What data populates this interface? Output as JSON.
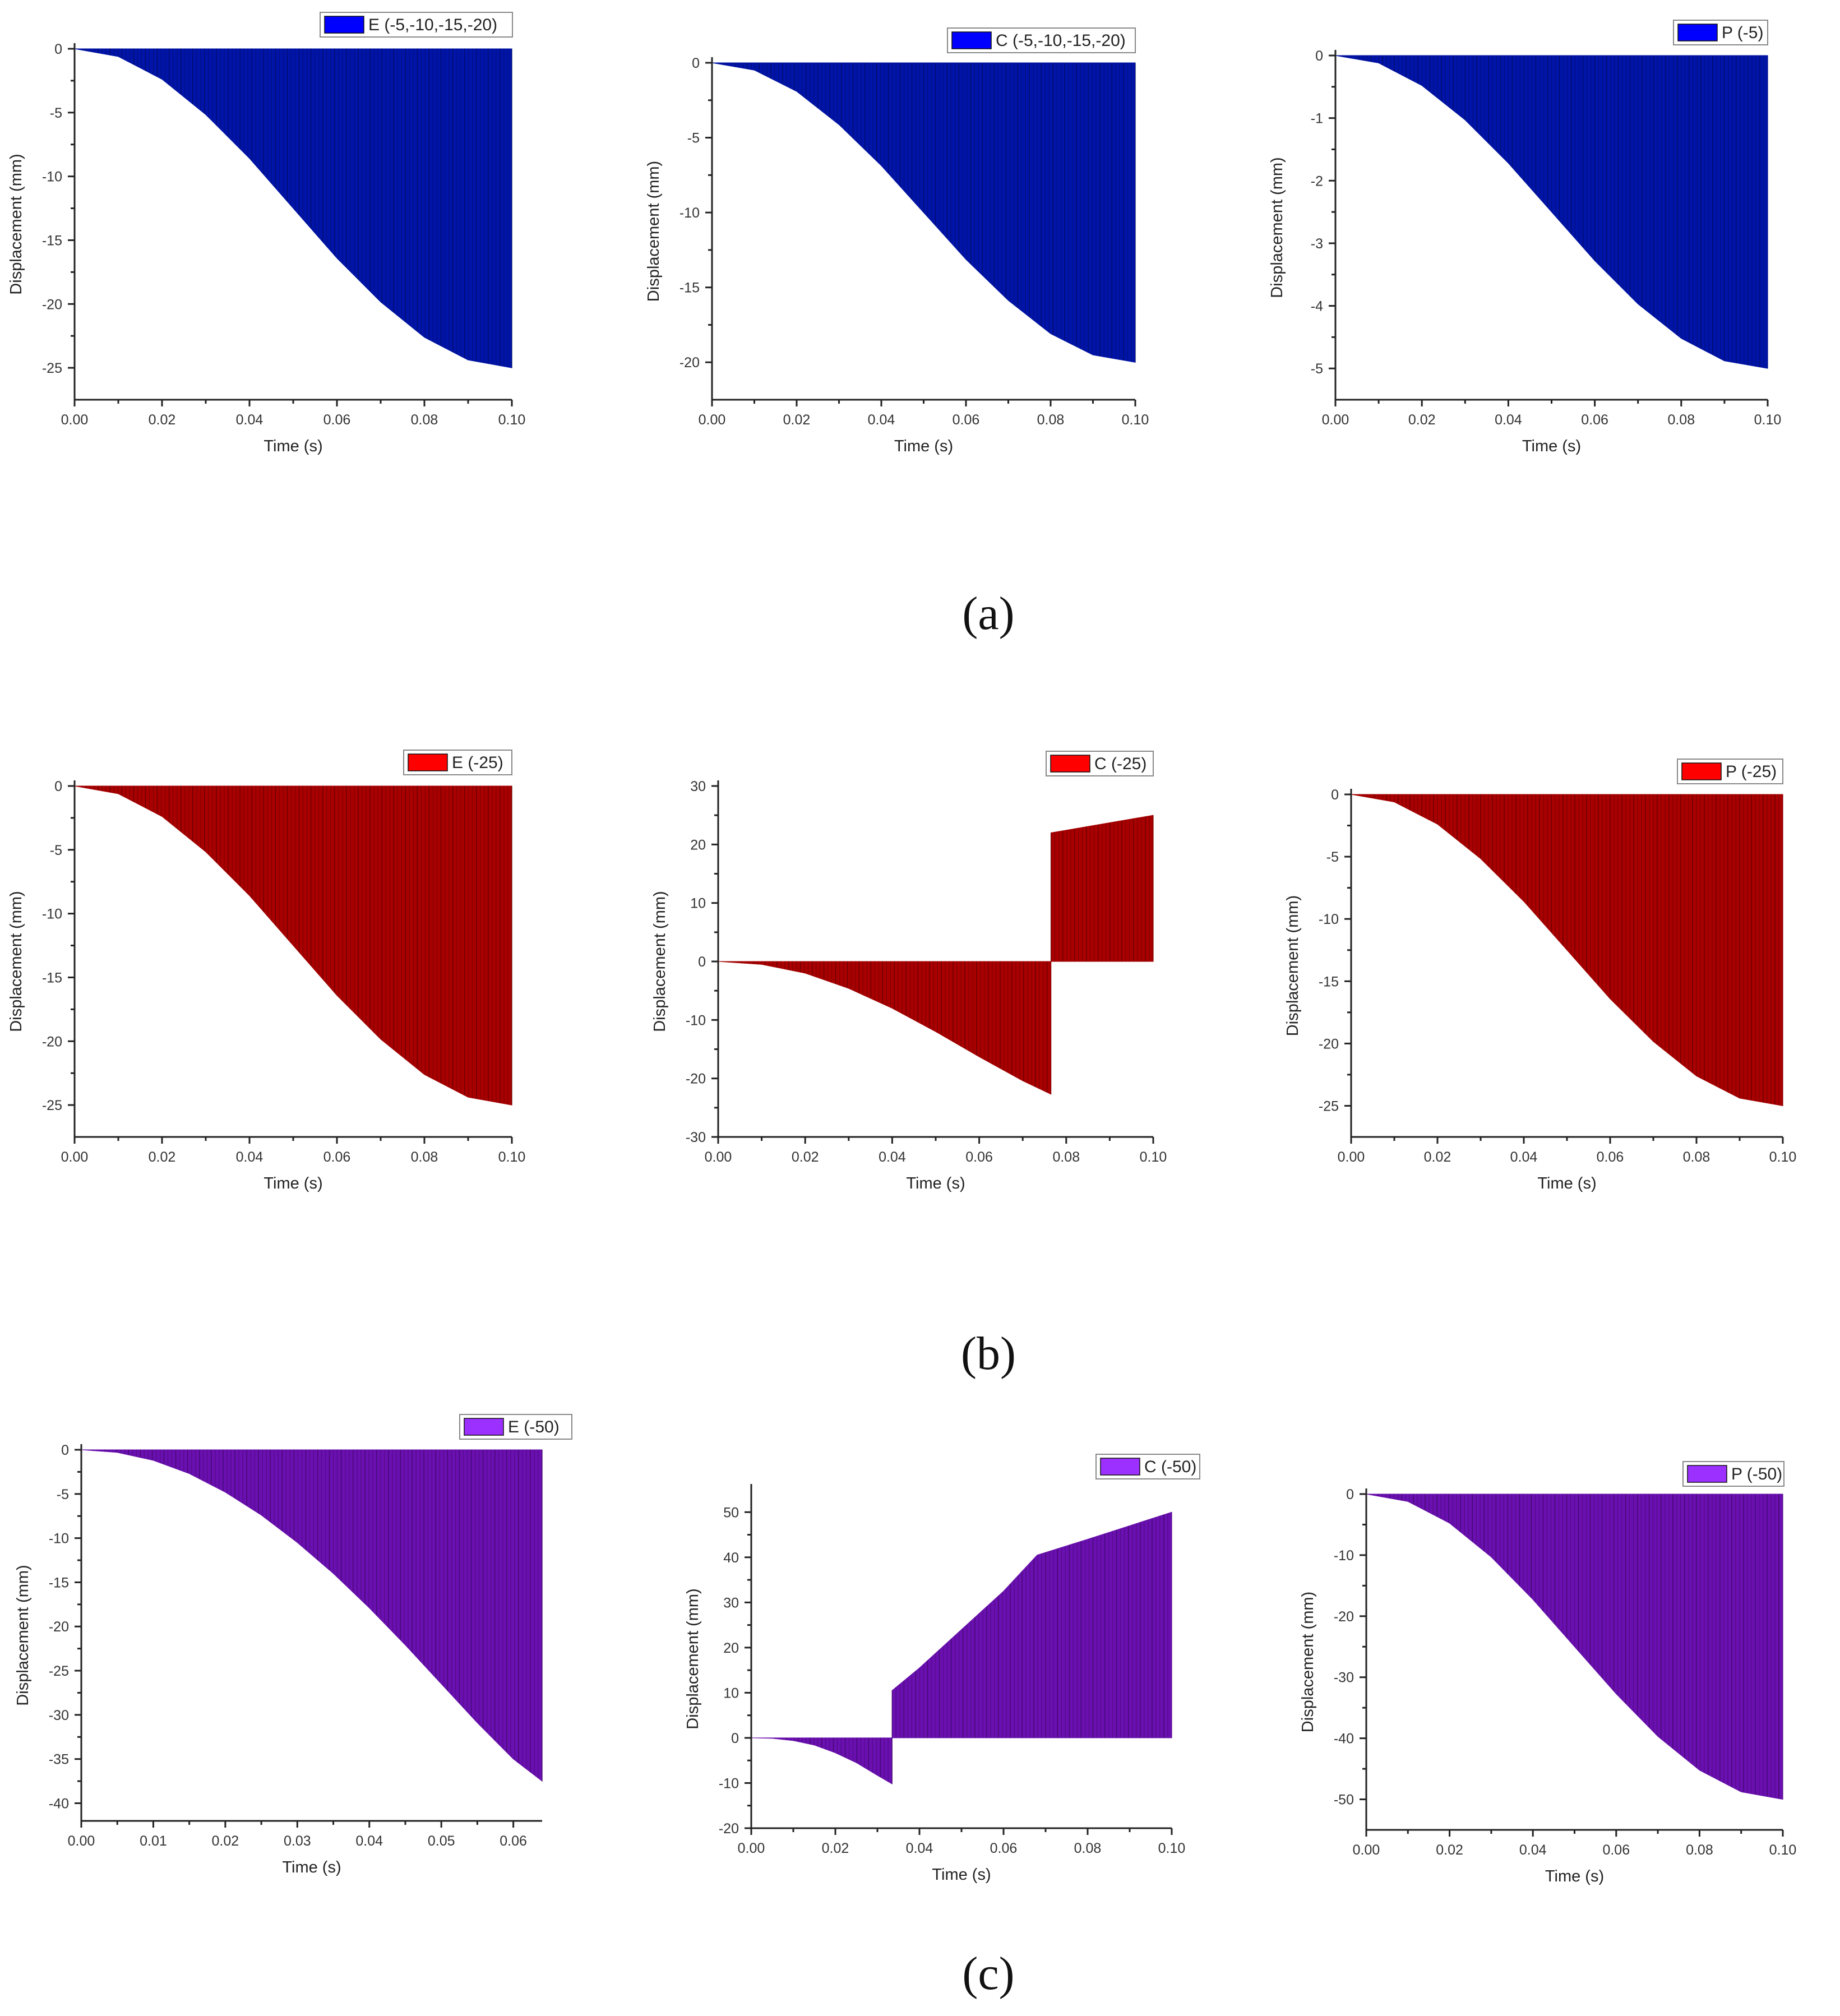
{
  "captions": [
    "(a)",
    "(b)",
    "(c)"
  ],
  "colors": {
    "blue": "#0014a8",
    "blue_legend": "#0000ff",
    "red": "#a80000",
    "red_legend": "#ff0000",
    "purple": "#6a0fb0",
    "purple_legend": "#9b30ff"
  },
  "chart_data": [
    {
      "id": "a1",
      "type": "area",
      "color": "blue",
      "legend": "E (-5,-10,-15,-20)",
      "xlabel": "Time (s)",
      "ylabel": "Displacement (mm)",
      "xlim": [
        0,
        0.1
      ],
      "ylim": [
        -27.5,
        0
      ],
      "xticks": [
        0,
        0.02,
        0.04,
        0.06,
        0.08,
        0.1
      ],
      "xtick_labels": [
        "0.00",
        "0.02",
        "0.04",
        "0.06",
        "0.08",
        "0.10"
      ],
      "yticks": [
        0,
        -5,
        -10,
        -15,
        -20,
        -25
      ],
      "ytick_labels": [
        "0",
        "-5",
        "-10",
        "-15",
        "-20",
        "-25"
      ],
      "segments": [
        {
          "x": [
            0,
            0.01,
            0.02,
            0.03,
            0.04,
            0.05,
            0.06,
            0.07,
            0.08,
            0.09,
            0.1
          ],
          "y": [
            0,
            -0.61,
            -2.39,
            -5.16,
            -8.59,
            -12.5,
            -16.41,
            -19.84,
            -22.61,
            -24.39,
            -25
          ]
        }
      ]
    },
    {
      "id": "a2",
      "type": "area",
      "color": "blue",
      "legend": "C (-5,-10,-15,-20)",
      "xlabel": "Time (s)",
      "ylabel": "Displacement (mm)",
      "xlim": [
        0,
        0.1
      ],
      "ylim": [
        -22.5,
        0
      ],
      "xticks": [
        0,
        0.02,
        0.04,
        0.06,
        0.08,
        0.1
      ],
      "xtick_labels": [
        "0.00",
        "0.02",
        "0.04",
        "0.06",
        "0.08",
        "0.10"
      ],
      "yticks": [
        0,
        -5,
        -10,
        -15,
        -20
      ],
      "ytick_labels": [
        "0",
        "-5",
        "-10",
        "-15",
        "-20"
      ],
      "segments": [
        {
          "x": [
            0,
            0.01,
            0.02,
            0.03,
            0.04,
            0.05,
            0.06,
            0.07,
            0.08,
            0.09,
            0.1
          ],
          "y": [
            0,
            -0.49,
            -1.91,
            -4.13,
            -6.87,
            -10,
            -13.13,
            -15.87,
            -18.09,
            -19.51,
            -20
          ]
        }
      ]
    },
    {
      "id": "a3",
      "type": "area",
      "color": "blue",
      "legend": "P (-5)",
      "xlabel": "Time (s)",
      "ylabel": "Displacement (mm)",
      "xlim": [
        0,
        0.1
      ],
      "ylim": [
        -5.5,
        0
      ],
      "xticks": [
        0,
        0.02,
        0.04,
        0.06,
        0.08,
        0.1
      ],
      "xtick_labels": [
        "0.00",
        "0.02",
        "0.04",
        "0.06",
        "0.08",
        "0.10"
      ],
      "yticks": [
        0,
        -1,
        -2,
        -3,
        -4,
        -5
      ],
      "ytick_labels": [
        "0",
        "-1",
        "-2",
        "-3",
        "-4",
        "-5"
      ],
      "segments": [
        {
          "x": [
            0,
            0.01,
            0.02,
            0.03,
            0.04,
            0.05,
            0.06,
            0.07,
            0.08,
            0.09,
            0.1
          ],
          "y": [
            0,
            -0.12,
            -0.48,
            -1.03,
            -1.72,
            -2.5,
            -3.28,
            -3.97,
            -4.52,
            -4.88,
            -5
          ]
        }
      ]
    },
    {
      "id": "b1",
      "type": "area",
      "color": "red",
      "legend": "E (-25)",
      "xlabel": "Time (s)",
      "ylabel": "Displacement (mm)",
      "xlim": [
        0,
        0.1
      ],
      "ylim": [
        -27.5,
        0
      ],
      "xticks": [
        0,
        0.02,
        0.04,
        0.06,
        0.08,
        0.1
      ],
      "xtick_labels": [
        "0.00",
        "0.02",
        "0.04",
        "0.06",
        "0.08",
        "0.10"
      ],
      "yticks": [
        0,
        -5,
        -10,
        -15,
        -20,
        -25
      ],
      "ytick_labels": [
        "0",
        "-5",
        "-10",
        "-15",
        "-20",
        "-25"
      ],
      "segments": [
        {
          "x": [
            0,
            0.01,
            0.02,
            0.03,
            0.04,
            0.05,
            0.06,
            0.07,
            0.08,
            0.09,
            0.1
          ],
          "y": [
            0,
            -0.61,
            -2.39,
            -5.16,
            -8.59,
            -12.5,
            -16.41,
            -19.84,
            -22.61,
            -24.39,
            -25
          ]
        }
      ]
    },
    {
      "id": "b2",
      "type": "area",
      "color": "red",
      "legend": "C (-25)",
      "xlabel": "Time (s)",
      "ylabel": "Displacement (mm)",
      "xlim": [
        0,
        0.1
      ],
      "ylim": [
        -30,
        30
      ],
      "xticks": [
        0,
        0.02,
        0.04,
        0.06,
        0.08,
        0.1
      ],
      "xtick_labels": [
        "0.00",
        "0.02",
        "0.04",
        "0.06",
        "0.08",
        "0.10"
      ],
      "yticks": [
        30,
        20,
        10,
        0,
        -10,
        -20,
        -30
      ],
      "ytick_labels": [
        "30",
        "20",
        "10",
        "0",
        "-10",
        "-20",
        "-30"
      ],
      "segments": [
        {
          "x": [
            0,
            0.01,
            0.02,
            0.03,
            0.04,
            0.05,
            0.06,
            0.07,
            0.0765
          ],
          "y": [
            0,
            -0.5,
            -2.0,
            -4.6,
            -8.0,
            -12.0,
            -16.3,
            -20.4,
            -22.7
          ]
        },
        {
          "x": [
            0.0765,
            0.1
          ],
          "y": [
            22.0,
            25.0
          ]
        }
      ]
    },
    {
      "id": "b3",
      "type": "area",
      "color": "red",
      "legend": "P (-25)",
      "xlabel": "Time (s)",
      "ylabel": "Displacement (mm)",
      "xlim": [
        0,
        0.1
      ],
      "ylim": [
        -27.5,
        0
      ],
      "xticks": [
        0,
        0.02,
        0.04,
        0.06,
        0.08,
        0.1
      ],
      "xtick_labels": [
        "0.00",
        "0.02",
        "0.04",
        "0.06",
        "0.08",
        "0.10"
      ],
      "yticks": [
        0,
        -5,
        -10,
        -15,
        -20,
        -25
      ],
      "ytick_labels": [
        "0",
        "-5",
        "-10",
        "-15",
        "-20",
        "-25"
      ],
      "segments": [
        {
          "x": [
            0,
            0.01,
            0.02,
            0.03,
            0.04,
            0.05,
            0.06,
            0.07,
            0.08,
            0.09,
            0.1
          ],
          "y": [
            0,
            -0.61,
            -2.39,
            -5.16,
            -8.59,
            -12.5,
            -16.41,
            -19.84,
            -22.61,
            -24.39,
            -25
          ]
        }
      ]
    },
    {
      "id": "c1",
      "type": "area",
      "color": "purple",
      "legend": "E (-50)",
      "xlabel": "Time (s)",
      "ylabel": "Displacement (mm)",
      "xlim": [
        0,
        0.064
      ],
      "ylim": [
        -42,
        0
      ],
      "xticks": [
        0,
        0.01,
        0.02,
        0.03,
        0.04,
        0.05,
        0.06
      ],
      "xtick_labels": [
        "0.00",
        "0.01",
        "0.02",
        "0.03",
        "0.04",
        "0.05",
        "0.06"
      ],
      "yticks": [
        0,
        -5,
        -10,
        -15,
        -20,
        -25,
        -30,
        -35,
        -40
      ],
      "ytick_labels": [
        "0",
        "-5",
        "-10",
        "-15",
        "-20",
        "-25",
        "-30",
        "-35",
        "-40"
      ],
      "segments": [
        {
          "x": [
            0,
            0.005,
            0.01,
            0.015,
            0.02,
            0.025,
            0.03,
            0.035,
            0.04,
            0.045,
            0.05,
            0.055,
            0.06,
            0.064
          ],
          "y": [
            0,
            -0.3,
            -1.2,
            -2.7,
            -4.8,
            -7.4,
            -10.5,
            -14.0,
            -17.9,
            -22.1,
            -26.5,
            -30.9,
            -35.0,
            -37.5
          ]
        }
      ]
    },
    {
      "id": "c2",
      "type": "area",
      "color": "purple",
      "legend": "C (-50)",
      "xlabel": "Time (s)",
      "ylabel": "Displacement (mm)",
      "xlim": [
        0,
        0.1
      ],
      "ylim": [
        -20,
        55
      ],
      "xticks": [
        0,
        0.02,
        0.04,
        0.06,
        0.08,
        0.1
      ],
      "xtick_labels": [
        "0.00",
        "0.02",
        "0.04",
        "0.06",
        "0.08",
        "0.10"
      ],
      "yticks": [
        50,
        40,
        30,
        20,
        10,
        0,
        -10,
        -20
      ],
      "ytick_labels": [
        "50",
        "40",
        "30",
        "20",
        "10",
        "0",
        "-10",
        "-20"
      ],
      "segments": [
        {
          "x": [
            0,
            0.005,
            0.01,
            0.015,
            0.02,
            0.025,
            0.03,
            0.0335
          ],
          "y": [
            0,
            -0.1,
            -0.6,
            -1.6,
            -3.3,
            -5.5,
            -8.3,
            -10.2
          ]
        },
        {
          "x": [
            0.0335,
            0.04,
            0.05,
            0.06,
            0.068,
            0.08,
            0.09,
            0.1
          ],
          "y": [
            10.5,
            15.5,
            24.0,
            32.5,
            40.5,
            44.0,
            47.0,
            50.0
          ]
        }
      ]
    },
    {
      "id": "c3",
      "type": "area",
      "color": "purple",
      "legend": "P (-50)",
      "xlabel": "Time (s)",
      "ylabel": "Displacement (mm)",
      "xlim": [
        0,
        0.1
      ],
      "ylim": [
        -55,
        0
      ],
      "xticks": [
        0,
        0.02,
        0.04,
        0.06,
        0.08,
        0.1
      ],
      "xtick_labels": [
        "0.00",
        "0.02",
        "0.04",
        "0.06",
        "0.08",
        "0.10"
      ],
      "yticks": [
        0,
        -10,
        -20,
        -30,
        -40,
        -50
      ],
      "ytick_labels": [
        "0",
        "-10",
        "-20",
        "-30",
        "-40",
        "-50"
      ],
      "segments": [
        {
          "x": [
            0,
            0.01,
            0.02,
            0.03,
            0.04,
            0.05,
            0.06,
            0.07,
            0.08,
            0.09,
            0.1
          ],
          "y": [
            0,
            -1.22,
            -4.77,
            -10.31,
            -17.27,
            -25,
            -32.73,
            -39.69,
            -45.23,
            -48.78,
            -50
          ]
        }
      ]
    }
  ]
}
